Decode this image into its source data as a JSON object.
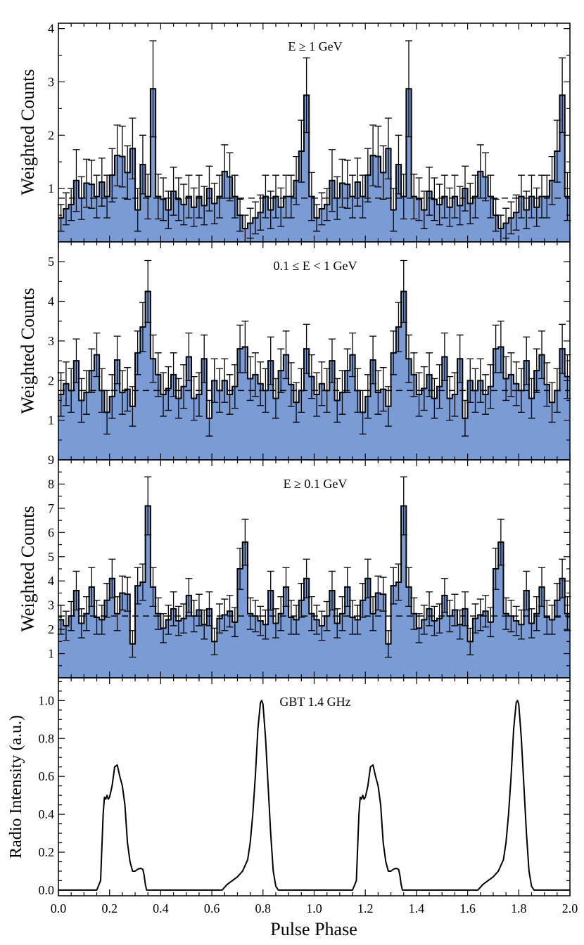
{
  "figure": {
    "xlabel": "Pulse Phase",
    "colors": {
      "fill": "#7b9bd4",
      "line": "#000000",
      "background": "#ffffff"
    }
  },
  "chart_data": [
    {
      "type": "bar",
      "title": "E ≥ 1 GeV",
      "ylabel": "Weighted Counts",
      "xlim": [
        0,
        2
      ],
      "ylim": [
        0,
        4.1
      ],
      "yticks": [
        1,
        2,
        3,
        4
      ],
      "bins_per_cycle": 50,
      "background_level": 0.82,
      "values": [
        0.45,
        0.62,
        0.7,
        1.15,
        0.82,
        1.1,
        1.08,
        0.85,
        1.12,
        0.85,
        1.25,
        1.62,
        1.6,
        1.3,
        1.75,
        0.6,
        1.45,
        0.85,
        2.87,
        0.85,
        0.8,
        0.6,
        0.95,
        0.8,
        0.7,
        0.85,
        0.65,
        0.85,
        0.68,
        1.0,
        0.72,
        0.85,
        1.32,
        1.22,
        0.85,
        0.5,
        0.25,
        0.35,
        0.45,
        0.55,
        0.85,
        0.6,
        0.85,
        0.65,
        0.85,
        0.85,
        1.15,
        1.7,
        2.75,
        0.85
      ],
      "errors": [
        0.25,
        0.3,
        0.3,
        0.58,
        0.4,
        0.45,
        0.45,
        0.4,
        0.45,
        0.4,
        0.5,
        0.57,
        0.57,
        0.5,
        0.57,
        0.4,
        0.55,
        0.42,
        0.9,
        0.42,
        0.4,
        0.35,
        0.45,
        0.4,
        0.38,
        0.4,
        0.36,
        0.4,
        0.36,
        0.42,
        0.38,
        0.4,
        0.5,
        0.45,
        0.4,
        0.3,
        0.25,
        0.28,
        0.3,
        0.33,
        0.4,
        0.35,
        0.4,
        0.36,
        0.4,
        0.4,
        0.45,
        0.58,
        0.7,
        0.45
      ]
    },
    {
      "type": "bar",
      "title": "0.1 ≤ E < 1 GeV",
      "ylabel": "Weighted Counts",
      "xlim": [
        0,
        2
      ],
      "ylim": [
        0,
        5.5
      ],
      "yticks": [
        1,
        2,
        3,
        4,
        5
      ],
      "bins_per_cycle": 50,
      "background_level": 1.75,
      "values": [
        1.65,
        1.92,
        1.75,
        2.5,
        1.5,
        1.7,
        2.25,
        2.65,
        1.75,
        1.2,
        1.6,
        2.52,
        1.7,
        1.78,
        1.35,
        2.7,
        3.35,
        4.25,
        2.55,
        2.15,
        1.65,
        1.8,
        2.15,
        1.55,
        1.85,
        2.6,
        1.55,
        1.65,
        2.55,
        1.05,
        2.0,
        1.75,
        2.0,
        1.65,
        1.85,
        2.8,
        2.85,
        2.05,
        2.15,
        1.92,
        1.75,
        2.5,
        1.55,
        2.25,
        2.65,
        1.9,
        1.45,
        1.75,
        2.8,
        2.1
      ],
      "errors": [
        0.55,
        0.55,
        0.55,
        0.55,
        0.55,
        0.55,
        0.55,
        0.55,
        0.55,
        0.55,
        0.55,
        0.6,
        0.55,
        0.55,
        0.5,
        0.55,
        0.62,
        0.78,
        0.6,
        0.55,
        0.55,
        0.55,
        0.55,
        0.5,
        0.55,
        0.6,
        0.55,
        0.55,
        0.6,
        0.45,
        0.55,
        0.55,
        0.55,
        0.5,
        0.55,
        0.6,
        0.65,
        0.55,
        0.55,
        0.55,
        0.55,
        0.6,
        0.5,
        0.55,
        0.6,
        0.55,
        0.5,
        0.55,
        0.62,
        0.55
      ]
    },
    {
      "type": "bar",
      "title": "E ≥ 0.1 GeV",
      "ylabel": "Weighted Counts",
      "xlim": [
        0,
        2
      ],
      "ylim": [
        0,
        9
      ],
      "yticks": [
        1,
        2,
        3,
        4,
        5,
        6,
        7,
        8,
        9
      ],
      "bins_per_cycle": 50,
      "background_level": 2.55,
      "values": [
        2.4,
        2.15,
        2.55,
        3.6,
        2.25,
        2.65,
        3.75,
        2.5,
        2.4,
        3.2,
        4.1,
        2.65,
        3.5,
        3.45,
        1.4,
        3.8,
        3.95,
        7.1,
        3.75,
        2.65,
        2.05,
        2.4,
        2.85,
        2.35,
        2.45,
        3.4,
        2.55,
        2.8,
        2.2,
        2.85,
        1.5,
        2.45,
        2.6,
        2.75,
        2.3,
        4.5,
        5.6,
        2.65,
        2.55,
        2.35,
        2.2,
        3.6,
        2.25,
        2.65,
        3.75,
        2.5,
        2.4,
        3.2,
        4.1,
        2.65
      ],
      "errors": [
        0.6,
        0.6,
        0.6,
        0.8,
        0.6,
        0.7,
        0.8,
        0.7,
        0.6,
        0.7,
        0.8,
        0.7,
        0.7,
        0.7,
        0.55,
        0.75,
        0.75,
        1.2,
        0.8,
        0.65,
        0.6,
        0.6,
        0.7,
        0.6,
        0.6,
        0.7,
        0.65,
        0.65,
        0.6,
        0.7,
        0.55,
        0.6,
        0.65,
        0.65,
        0.6,
        0.85,
        0.95,
        0.65,
        0.65,
        0.6,
        0.6,
        0.8,
        0.6,
        0.7,
        0.8,
        0.7,
        0.6,
        0.7,
        0.8,
        0.7
      ]
    },
    {
      "type": "line",
      "title": "GBT 1.4 GHz",
      "ylabel": "Radio Intensity (a.u.)",
      "xlabel": "Pulse Phase",
      "xlim": [
        0,
        2
      ],
      "ylim": [
        -0.03,
        1.12
      ],
      "xticks": [
        0.0,
        0.2,
        0.4,
        0.6,
        0.8,
        1.0,
        1.2,
        1.4,
        1.6,
        1.8,
        2.0
      ],
      "xtick_labels": [
        "0.0",
        "0.2",
        "0.4",
        "0.6",
        "0.8",
        "1.0",
        "1.2",
        "1.4",
        "1.6",
        "1.8",
        "2.0"
      ],
      "yticks": [
        0.0,
        0.2,
        0.4,
        0.6,
        0.8,
        1.0
      ],
      "ytick_labels": [
        "0.0",
        "0.2",
        "0.4",
        "0.6",
        "0.8",
        "1.0"
      ],
      "x": [
        0.0,
        0.15,
        0.165,
        0.175,
        0.18,
        0.185,
        0.19,
        0.195,
        0.2,
        0.21,
        0.22,
        0.23,
        0.24,
        0.25,
        0.26,
        0.27,
        0.28,
        0.29,
        0.3,
        0.31,
        0.32,
        0.33,
        0.335,
        0.34,
        0.345,
        0.35,
        0.64,
        0.66,
        0.7,
        0.72,
        0.74,
        0.75,
        0.76,
        0.77,
        0.78,
        0.79,
        0.795,
        0.8,
        0.81,
        0.82,
        0.83,
        0.84,
        0.85,
        0.86,
        1.0
      ],
      "y": [
        0.0,
        0.0,
        0.05,
        0.4,
        0.49,
        0.48,
        0.5,
        0.48,
        0.49,
        0.55,
        0.65,
        0.66,
        0.6,
        0.55,
        0.45,
        0.25,
        0.15,
        0.1,
        0.1,
        0.11,
        0.115,
        0.11,
        0.08,
        0.03,
        0.0,
        0.0,
        0.0,
        0.03,
        0.07,
        0.1,
        0.16,
        0.25,
        0.4,
        0.6,
        0.85,
        0.99,
        1.0,
        0.98,
        0.8,
        0.55,
        0.3,
        0.1,
        0.02,
        0.0,
        0.0
      ],
      "repeat_period": 1.0
    }
  ]
}
